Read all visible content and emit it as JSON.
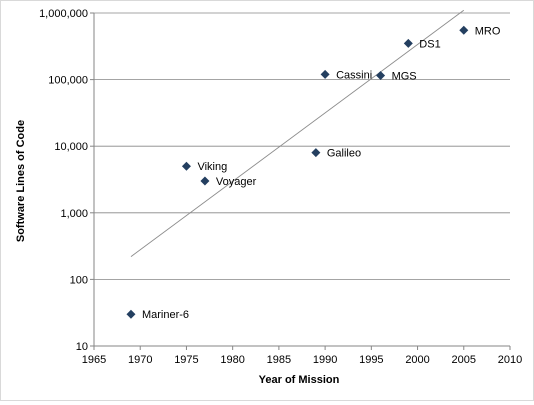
{
  "chart_data": {
    "type": "scatter",
    "xlabel": "Year of Mission",
    "ylabel": "Software Lines of Code",
    "xlim": [
      1965,
      2010
    ],
    "ylim": [
      10,
      1000000
    ],
    "y_scale": "log",
    "grid": "horizontal",
    "x_ticks": [
      "1965",
      "1970",
      "1975",
      "1980",
      "1985",
      "1990",
      "1995",
      "2000",
      "2005",
      "2010"
    ],
    "y_ticks": [
      "10",
      "100",
      "1,000",
      "10,000",
      "100,000",
      "1,000,000"
    ],
    "points": [
      {
        "label": "Mariner-6",
        "x": 1969,
        "y": 30
      },
      {
        "label": "Viking",
        "x": 1975,
        "y": 5000
      },
      {
        "label": "Voyager",
        "x": 1977,
        "y": 3000
      },
      {
        "label": "Galileo",
        "x": 1989,
        "y": 8000
      },
      {
        "label": "Cassini",
        "x": 1990,
        "y": 120000
      },
      {
        "label": "MGS",
        "x": 1996,
        "y": 115000
      },
      {
        "label": "DS1",
        "x": 1999,
        "y": 350000
      },
      {
        "label": "MRO",
        "x": 2005,
        "y": 550000
      }
    ],
    "trendline": {
      "x": [
        1969,
        2005
      ],
      "y": [
        220,
        1100000
      ]
    },
    "colors": {
      "marker": "#243f60",
      "trendline": "#8c8c8c",
      "grid": "#868686",
      "axis": "#868686"
    }
  }
}
